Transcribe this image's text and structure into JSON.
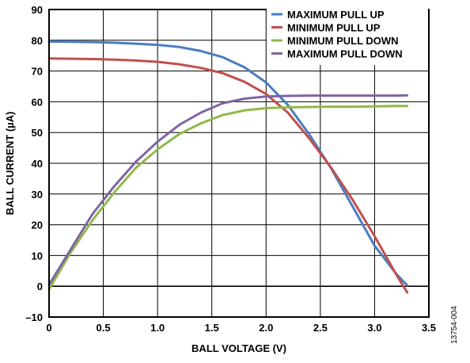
{
  "chart_data": {
    "type": "line",
    "xlabel": "BALL VOLTAGE (V)",
    "ylabel": "BALL CURRENT (µA)",
    "xlim": [
      0,
      3.5
    ],
    "ylim": [
      -10,
      90
    ],
    "xticks": [
      0,
      0.5,
      1.0,
      1.5,
      2.0,
      2.5,
      3.0,
      3.5
    ],
    "yticks": [
      -10,
      0,
      10,
      20,
      30,
      40,
      50,
      60,
      70,
      80,
      90
    ],
    "xtick_labels": [
      "0",
      "0.5",
      "1.0",
      "1.5",
      "2.0",
      "2.5",
      "3.0",
      "3.5"
    ],
    "ytick_labels": [
      "–10",
      "0",
      "10",
      "20",
      "30",
      "40",
      "50",
      "60",
      "70",
      "80",
      "90"
    ],
    "grid": true,
    "legend_position": "top-right",
    "figure_id": "13754-004",
    "series": [
      {
        "name": "MAXIMUM PULL UP",
        "color": "#4a7dc0",
        "x": [
          0,
          0.2,
          0.4,
          0.6,
          0.8,
          1.0,
          1.2,
          1.4,
          1.6,
          1.8,
          2.0,
          2.2,
          2.4,
          2.6,
          2.8,
          3.0,
          3.2,
          3.3
        ],
        "y": [
          79.6,
          79.5,
          79.4,
          79.2,
          78.9,
          78.5,
          77.8,
          76.5,
          74.5,
          71.2,
          66.3,
          59.0,
          49.3,
          38.3,
          25.8,
          13.2,
          4.0,
          0.3
        ]
      },
      {
        "name": "MINIMUM PULL UP",
        "color": "#c0504d",
        "x": [
          0,
          0.2,
          0.4,
          0.6,
          0.8,
          1.0,
          1.2,
          1.4,
          1.6,
          1.8,
          2.0,
          2.2,
          2.4,
          2.6,
          2.8,
          3.0,
          3.2,
          3.3
        ],
        "y": [
          74.1,
          74.0,
          73.9,
          73.7,
          73.4,
          73.0,
          72.2,
          71.0,
          69.3,
          66.5,
          62.5,
          56.5,
          48.0,
          38.5,
          28.0,
          16.3,
          3.8,
          -2.0
        ]
      },
      {
        "name": "MINIMUM PULL DOWN",
        "color": "#8fba4a",
        "x": [
          0,
          0.2,
          0.4,
          0.6,
          0.8,
          1.0,
          1.2,
          1.4,
          1.6,
          1.8,
          2.0,
          2.2,
          2.4,
          2.6,
          2.8,
          3.0,
          3.2,
          3.3
        ],
        "y": [
          -1.0,
          11.0,
          21.5,
          30.5,
          38.5,
          44.5,
          49.5,
          53.0,
          55.7,
          57.2,
          57.9,
          58.2,
          58.3,
          58.4,
          58.4,
          58.5,
          58.6,
          58.6
        ]
      },
      {
        "name": "MAXIMUM PULL DOWN",
        "color": "#8064a2",
        "x": [
          0,
          0.2,
          0.4,
          0.6,
          0.8,
          1.0,
          1.2,
          1.4,
          1.6,
          1.8,
          2.0,
          2.2,
          2.4,
          2.6,
          2.8,
          3.0,
          3.2,
          3.3
        ],
        "y": [
          0.5,
          12.0,
          23.5,
          32.5,
          40.5,
          47.0,
          52.5,
          56.5,
          59.5,
          61.0,
          61.7,
          61.9,
          62.0,
          62.0,
          62.0,
          62.0,
          62.0,
          62.1
        ]
      }
    ]
  }
}
